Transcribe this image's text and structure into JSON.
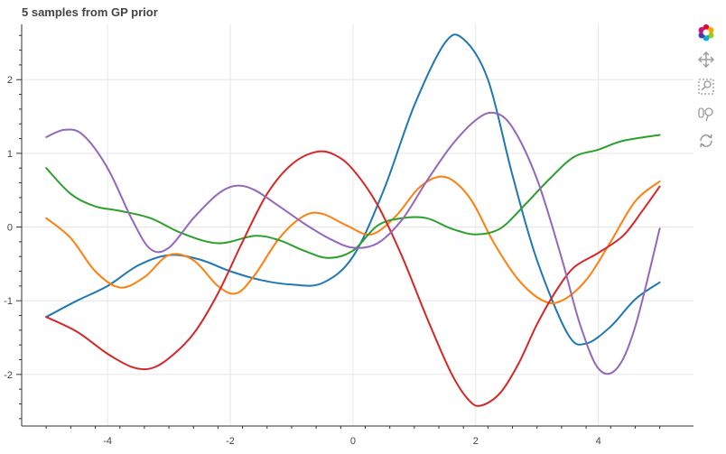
{
  "title": "5 samples from GP prior",
  "toolbar": {
    "tools": [
      {
        "name": "bokeh-logo-icon"
      },
      {
        "name": "pan-tool-icon"
      },
      {
        "name": "box-zoom-tool-icon"
      },
      {
        "name": "wheel-zoom-tool-icon"
      },
      {
        "name": "reset-tool-icon"
      }
    ]
  },
  "chart_data": {
    "type": "line",
    "title": "5 samples from GP prior",
    "xlabel": "",
    "ylabel": "",
    "xlim": [
      -5.4,
      5.55
    ],
    "ylim": [
      -2.7,
      2.75
    ],
    "xticks": [
      -4,
      -2,
      0,
      2,
      4
    ],
    "yticks": [
      -2,
      -1,
      0,
      1,
      2
    ],
    "grid": true,
    "legend": "none",
    "series": [
      {
        "color": "#1f77b4",
        "points": [
          [
            -5,
            -1.22
          ],
          [
            -4.5,
            -1.0
          ],
          [
            -4,
            -0.8
          ],
          [
            -3.5,
            -0.52
          ],
          [
            -3,
            -0.38
          ],
          [
            -2.5,
            -0.44
          ],
          [
            -2,
            -0.6
          ],
          [
            -1.5,
            -0.72
          ],
          [
            -1,
            -0.78
          ],
          [
            -0.5,
            -0.76
          ],
          [
            0,
            -0.4
          ],
          [
            0.5,
            0.5
          ],
          [
            1,
            1.65
          ],
          [
            1.5,
            2.5
          ],
          [
            1.8,
            2.55
          ],
          [
            2.2,
            2.0
          ],
          [
            2.6,
            0.7
          ],
          [
            3,
            -0.45
          ],
          [
            3.5,
            -1.45
          ],
          [
            3.8,
            -1.58
          ],
          [
            4.2,
            -1.35
          ],
          [
            4.6,
            -0.98
          ],
          [
            5,
            -0.75
          ]
        ]
      },
      {
        "color": "#ff7f0e",
        "points": [
          [
            -5,
            0.12
          ],
          [
            -4.6,
            -0.15
          ],
          [
            -4.2,
            -0.6
          ],
          [
            -3.8,
            -0.82
          ],
          [
            -3.4,
            -0.68
          ],
          [
            -3,
            -0.38
          ],
          [
            -2.6,
            -0.45
          ],
          [
            -2.2,
            -0.8
          ],
          [
            -1.9,
            -0.9
          ],
          [
            -1.6,
            -0.65
          ],
          [
            -1.2,
            -0.15
          ],
          [
            -0.8,
            0.15
          ],
          [
            -0.5,
            0.18
          ],
          [
            -0.1,
            0.02
          ],
          [
            0.3,
            -0.1
          ],
          [
            0.7,
            0.15
          ],
          [
            1.1,
            0.55
          ],
          [
            1.5,
            0.68
          ],
          [
            1.9,
            0.4
          ],
          [
            2.3,
            -0.22
          ],
          [
            2.7,
            -0.72
          ],
          [
            3.1,
            -1.0
          ],
          [
            3.4,
            -1.0
          ],
          [
            3.8,
            -0.72
          ],
          [
            4.2,
            -0.2
          ],
          [
            4.6,
            0.35
          ],
          [
            5,
            0.62
          ]
        ]
      },
      {
        "color": "#2ca02c",
        "points": [
          [
            -5,
            0.8
          ],
          [
            -4.6,
            0.45
          ],
          [
            -4.2,
            0.28
          ],
          [
            -3.8,
            0.22
          ],
          [
            -3.3,
            0.12
          ],
          [
            -2.8,
            -0.08
          ],
          [
            -2.2,
            -0.22
          ],
          [
            -1.6,
            -0.12
          ],
          [
            -1.2,
            -0.18
          ],
          [
            -0.8,
            -0.32
          ],
          [
            -0.4,
            -0.42
          ],
          [
            0,
            -0.32
          ],
          [
            0.4,
            0.02
          ],
          [
            0.8,
            0.12
          ],
          [
            1.2,
            0.12
          ],
          [
            1.6,
            -0.02
          ],
          [
            2,
            -0.1
          ],
          [
            2.4,
            -0.02
          ],
          [
            2.8,
            0.3
          ],
          [
            3.2,
            0.65
          ],
          [
            3.6,
            0.95
          ],
          [
            4,
            1.05
          ],
          [
            4.4,
            1.17
          ],
          [
            5,
            1.25
          ]
        ]
      },
      {
        "color": "#d62728",
        "points": [
          [
            -5,
            -1.22
          ],
          [
            -4.5,
            -1.42
          ],
          [
            -4,
            -1.72
          ],
          [
            -3.6,
            -1.9
          ],
          [
            -3.3,
            -1.92
          ],
          [
            -3,
            -1.78
          ],
          [
            -2.6,
            -1.45
          ],
          [
            -2.2,
            -0.9
          ],
          [
            -1.8,
            -0.2
          ],
          [
            -1.4,
            0.45
          ],
          [
            -1,
            0.85
          ],
          [
            -0.6,
            1.02
          ],
          [
            -0.3,
            0.98
          ],
          [
            0,
            0.78
          ],
          [
            0.4,
            0.3
          ],
          [
            0.8,
            -0.4
          ],
          [
            1.2,
            -1.22
          ],
          [
            1.6,
            -1.98
          ],
          [
            1.9,
            -2.36
          ],
          [
            2.1,
            -2.42
          ],
          [
            2.4,
            -2.25
          ],
          [
            2.7,
            -1.85
          ],
          [
            3,
            -1.32
          ],
          [
            3.3,
            -0.88
          ],
          [
            3.6,
            -0.55
          ],
          [
            4,
            -0.35
          ],
          [
            4.4,
            -0.12
          ],
          [
            4.7,
            0.2
          ],
          [
            5,
            0.55
          ]
        ]
      },
      {
        "color": "#9467bd",
        "points": [
          [
            -5,
            1.22
          ],
          [
            -4.7,
            1.32
          ],
          [
            -4.4,
            1.25
          ],
          [
            -4,
            0.8
          ],
          [
            -3.6,
            0.1
          ],
          [
            -3.3,
            -0.3
          ],
          [
            -3,
            -0.28
          ],
          [
            -2.6,
            0.12
          ],
          [
            -2.2,
            0.45
          ],
          [
            -1.9,
            0.56
          ],
          [
            -1.6,
            0.5
          ],
          [
            -1.2,
            0.28
          ],
          [
            -0.8,
            0.05
          ],
          [
            -0.4,
            -0.15
          ],
          [
            0,
            -0.28
          ],
          [
            0.4,
            -0.22
          ],
          [
            0.8,
            0.1
          ],
          [
            1.2,
            0.62
          ],
          [
            1.6,
            1.1
          ],
          [
            2,
            1.45
          ],
          [
            2.3,
            1.55
          ],
          [
            2.6,
            1.35
          ],
          [
            3,
            0.65
          ],
          [
            3.4,
            -0.42
          ],
          [
            3.7,
            -1.32
          ],
          [
            4,
            -1.92
          ],
          [
            4.3,
            -1.92
          ],
          [
            4.6,
            -1.35
          ],
          [
            5,
            -0.02
          ]
        ]
      }
    ]
  }
}
